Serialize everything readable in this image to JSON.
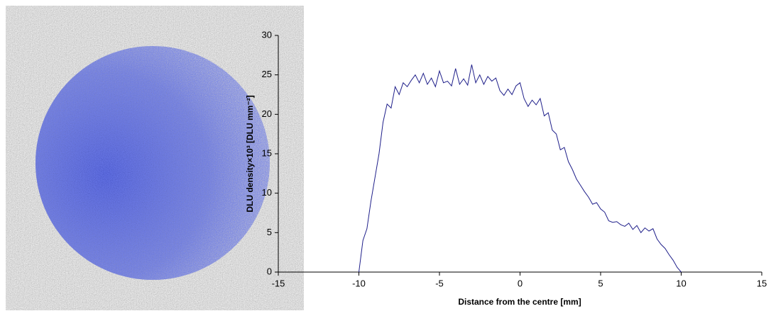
{
  "chart_data": {
    "type": "line",
    "xlabel": "Distance from the centre [mm]",
    "ylabel": "DLU density×10³ [DLU mm⁻²]",
    "xlim": [
      -15,
      15
    ],
    "xticks": [
      -15,
      -10,
      -5,
      0,
      5,
      10,
      15
    ],
    "ylim": [
      0,
      30
    ],
    "yticks": [
      0,
      5,
      10,
      15,
      20,
      25,
      30
    ],
    "grid": false,
    "x": [
      -10,
      -9.75,
      -9.5,
      -9.25,
      -9,
      -8.75,
      -8.5,
      -8.25,
      -8,
      -7.75,
      -7.5,
      -7.25,
      -7,
      -6.75,
      -6.5,
      -6.25,
      -6,
      -5.75,
      -5.5,
      -5.25,
      -5,
      -4.75,
      -4.5,
      -4.25,
      -4,
      -3.75,
      -3.5,
      -3.25,
      -3,
      -2.75,
      -2.5,
      -2.25,
      -2,
      -1.75,
      -1.5,
      -1.25,
      -1,
      -0.75,
      -0.5,
      -0.25,
      0,
      0.25,
      0.5,
      0.75,
      1,
      1.25,
      1.5,
      1.75,
      2,
      2.25,
      2.5,
      2.75,
      3,
      3.25,
      3.5,
      3.75,
      4,
      4.25,
      4.5,
      4.75,
      5,
      5.25,
      5.5,
      5.75,
      6,
      6.25,
      6.5,
      6.75,
      7,
      7.25,
      7.5,
      7.75,
      8,
      8.25,
      8.5,
      8.75,
      9,
      9.25,
      9.5,
      9.75,
      10
    ],
    "series": [
      {
        "color": "#1f1f8a",
        "values": [
          0,
          4,
          5.5,
          9,
          12,
          15,
          19,
          21.3,
          20.8,
          23.5,
          22.5,
          24,
          23.5,
          24.3,
          25,
          24,
          25.2,
          23.8,
          24.6,
          23.5,
          25.5,
          24,
          24.2,
          23.6,
          25.8,
          23.8,
          24.5,
          23.7,
          26.3,
          24,
          25,
          23.8,
          24.8,
          24.2,
          24.6,
          23,
          22.4,
          23.2,
          22.5,
          23.6,
          24,
          22,
          21,
          21.8,
          21.2,
          22,
          19.8,
          20.2,
          18,
          17.5,
          15.5,
          15.8,
          14,
          13,
          11.8,
          11,
          10.2,
          9.5,
          8.6,
          8.8,
          8,
          7.6,
          6.5,
          6.3,
          6.4,
          6,
          5.8,
          6.2,
          5.4,
          5.9,
          5,
          5.6,
          5.2,
          5.5,
          4.2,
          3.5,
          3,
          2.2,
          1.5,
          0.6,
          0
        ]
      }
    ]
  }
}
